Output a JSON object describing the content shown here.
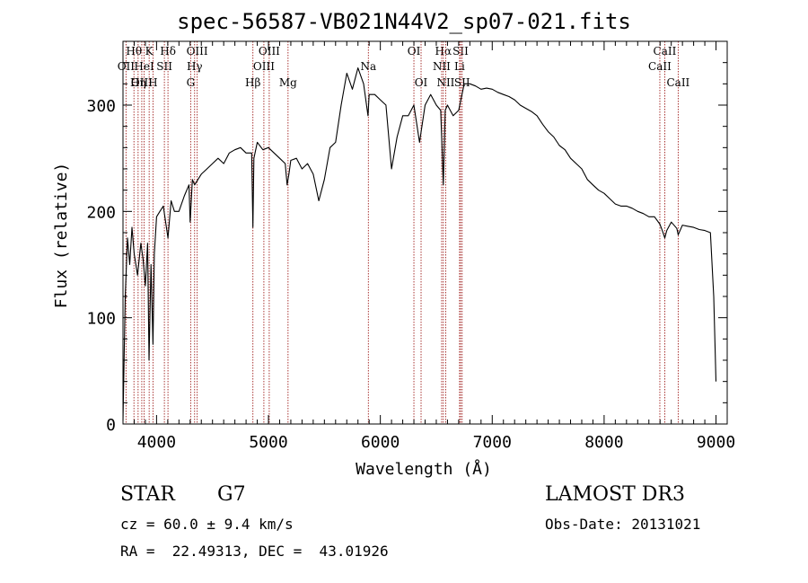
{
  "chart_data": {
    "type": "line",
    "title": "spec-56587-VB021N44V2_sp07-021.fits",
    "xlabel": "Wavelength (Å)",
    "ylabel": "Flux (relative)",
    "xlim": [
      3700,
      9100
    ],
    "ylim": [
      0,
      360
    ],
    "xticks": [
      4000,
      5000,
      6000,
      7000,
      8000,
      9000
    ],
    "yticks": [
      0,
      100,
      200,
      300
    ],
    "grid": false,
    "series": [
      {
        "name": "flux",
        "color": "#000000",
        "x": [
          3700,
          3720,
          3740,
          3760,
          3780,
          3800,
          3830,
          3860,
          3880,
          3900,
          3920,
          3933,
          3950,
          3968,
          3980,
          4000,
          4030,
          4060,
          4102,
          4130,
          4160,
          4200,
          4250,
          4290,
          4300,
          4320,
          4340,
          4370,
          4400,
          4450,
          4500,
          4550,
          4600,
          4650,
          4700,
          4750,
          4800,
          4850,
          4861,
          4870,
          4900,
          4950,
          5000,
          5050,
          5100,
          5150,
          5167,
          5183,
          5200,
          5250,
          5300,
          5350,
          5400,
          5450,
          5500,
          5550,
          5600,
          5650,
          5700,
          5750,
          5800,
          5850,
          5890,
          5900,
          5950,
          6000,
          6050,
          6100,
          6150,
          6200,
          6250,
          6300,
          6350,
          6400,
          6450,
          6500,
          6540,
          6563,
          6580,
          6600,
          6650,
          6700,
          6750,
          6800,
          6850,
          6900,
          6950,
          7000,
          7050,
          7100,
          7150,
          7200,
          7250,
          7300,
          7350,
          7400,
          7450,
          7500,
          7550,
          7600,
          7650,
          7700,
          7750,
          7800,
          7850,
          7900,
          7950,
          8000,
          8050,
          8100,
          8150,
          8200,
          8250,
          8300,
          8350,
          8400,
          8450,
          8498,
          8520,
          8542,
          8560,
          8600,
          8650,
          8662,
          8700,
          8750,
          8800,
          8850,
          8900,
          8950,
          8980,
          9000
        ],
        "values": [
          3,
          120,
          175,
          150,
          185,
          160,
          140,
          170,
          155,
          130,
          170,
          60,
          150,
          75,
          160,
          195,
          200,
          205,
          175,
          210,
          200,
          200,
          215,
          225,
          190,
          230,
          225,
          230,
          235,
          240,
          245,
          250,
          245,
          255,
          258,
          260,
          255,
          255,
          185,
          250,
          265,
          258,
          260,
          255,
          250,
          245,
          225,
          235,
          248,
          250,
          240,
          245,
          235,
          210,
          230,
          260,
          265,
          300,
          330,
          315,
          335,
          320,
          290,
          310,
          310,
          305,
          300,
          240,
          270,
          290,
          290,
          300,
          265,
          300,
          310,
          300,
          295,
          225,
          295,
          300,
          290,
          295,
          320,
          320,
          318,
          315,
          316,
          315,
          312,
          310,
          308,
          305,
          300,
          297,
          294,
          290,
          282,
          275,
          270,
          262,
          258,
          250,
          245,
          240,
          230,
          225,
          220,
          217,
          212,
          207,
          205,
          205,
          203,
          200,
          198,
          195,
          195,
          188,
          182,
          175,
          182,
          190,
          184,
          178,
          187,
          186,
          185,
          183,
          182,
          180,
          120,
          40
        ]
      }
    ],
    "lines": [
      {
        "label": "Hθ",
        "wavelength": 3798,
        "row": 1
      },
      {
        "label": "OII",
        "wavelength": 3727,
        "row": 2
      },
      {
        "label": "OIII",
        "wavelength": 3868,
        "row": 3
      },
      {
        "label": "K",
        "wavelength": 3934,
        "row": 1
      },
      {
        "label": "HeI",
        "wavelength": 3889,
        "row": 2
      },
      {
        "label": "Hη",
        "wavelength": 3835,
        "row": 3
      },
      {
        "label": "Hδ",
        "wavelength": 4102,
        "row": 1
      },
      {
        "label": "SII",
        "wavelength": 4070,
        "row": 2
      },
      {
        "label": "H",
        "wavelength": 3968,
        "row": 3
      },
      {
        "label": "OIII",
        "wavelength": 4363,
        "row": 1
      },
      {
        "label": "Hγ",
        "wavelength": 4340,
        "row": 2
      },
      {
        "label": "G",
        "wavelength": 4305,
        "row": 3
      },
      {
        "label": "OIII",
        "wavelength": 5007,
        "row": 1
      },
      {
        "label": "OIII",
        "wavelength": 4959,
        "row": 2
      },
      {
        "label": "Hβ",
        "wavelength": 4861,
        "row": 3
      },
      {
        "label": "Mg",
        "wavelength": 5175,
        "row": 3
      },
      {
        "label": "Na",
        "wavelength": 5893,
        "row": 2
      },
      {
        "label": "OI",
        "wavelength": 6300,
        "row": 1
      },
      {
        "label": "OI",
        "wavelength": 6364,
        "row": 3
      },
      {
        "label": "Hα",
        "wavelength": 6563,
        "row": 1
      },
      {
        "label": "SII",
        "wavelength": 6717,
        "row": 1
      },
      {
        "label": "NII",
        "wavelength": 6548,
        "row": 2
      },
      {
        "label": "Li",
        "wavelength": 6708,
        "row": 2
      },
      {
        "label": "NII",
        "wavelength": 6584,
        "row": 3
      },
      {
        "label": "SII",
        "wavelength": 6731,
        "row": 3
      },
      {
        "label": "CaII",
        "wavelength": 8542,
        "row": 1
      },
      {
        "label": "CaII",
        "wavelength": 8498,
        "row": 2
      },
      {
        "label": "CaII",
        "wavelength": 8662,
        "row": 3
      }
    ],
    "line_color": "#a0201e"
  },
  "info": {
    "class": "STAR",
    "subclass": "G7",
    "survey": "LAMOST DR3",
    "cz": "cz = 60.0 ± 9.4 km/s",
    "obs_date": "Obs-Date: 20131021",
    "radec": "RA =  22.49313, DEC =  43.01926"
  }
}
